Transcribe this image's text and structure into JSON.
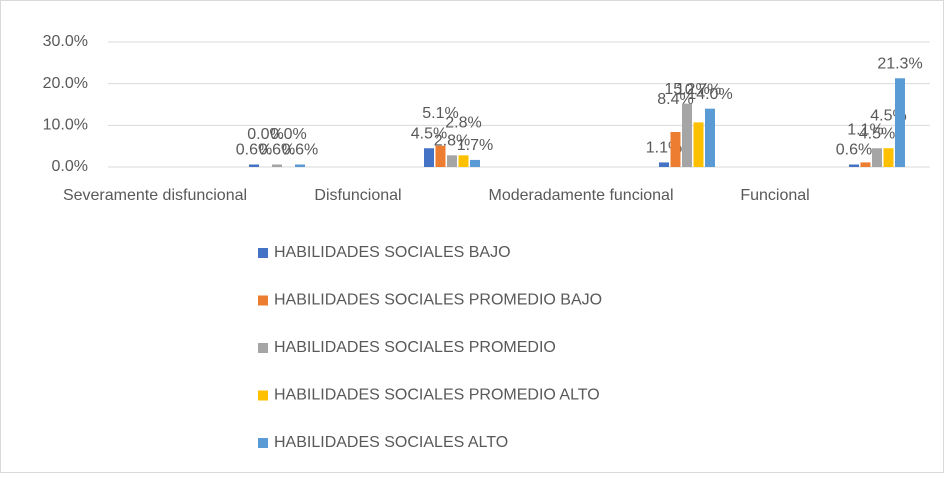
{
  "chart_data": {
    "type": "bar",
    "categories": [
      "Severamente disfuncional",
      "Disfuncional",
      "Moderadamente funcional",
      "Funcional"
    ],
    "series": [
      {
        "name": "HABILIDADES SOCIALES BAJO",
        "color": "#4472c4",
        "values": [
          0.6,
          4.5,
          1.1,
          0.6
        ],
        "value_labels": [
          "0.6%",
          "4.5%",
          "1.1%",
          "0.6%"
        ]
      },
      {
        "name": "HABILIDADES SOCIALES PROMEDIO BAJO",
        "color": "#ed7d31",
        "values": [
          0.0,
          5.1,
          8.4,
          1.1
        ],
        "value_labels": [
          "0.0%",
          "5.1%",
          "8.4%",
          "1.1%"
        ]
      },
      {
        "name": "HABILIDADES SOCIALES PROMEDIO",
        "color": "#a5a5a5",
        "values": [
          0.6,
          2.8,
          15.2,
          4.5
        ],
        "value_labels": [
          "0.6%",
          "2.8%",
          "15.2%",
          "4.5%"
        ]
      },
      {
        "name": "HABILIDADES SOCIALES PROMEDIO ALTO",
        "color": "#ffc000",
        "values": [
          0.0,
          2.8,
          10.7,
          4.5
        ],
        "value_labels": [
          "0.0%",
          "2.8%",
          "10.7%",
          "4.5%"
        ]
      },
      {
        "name": "HABILIDADES SOCIALES ALTO",
        "color": "#5b9bd5",
        "values": [
          0.6,
          1.7,
          14.0,
          21.3
        ],
        "value_labels": [
          "0.6%",
          "1.7%",
          "14.0%",
          "21.3%"
        ]
      }
    ],
    "ylim": [
      0,
      30
    ],
    "yticks": [
      {
        "value": 0,
        "label": "0.0%"
      },
      {
        "value": 10,
        "label": "10.0%"
      },
      {
        "value": 20,
        "label": "20.0%"
      },
      {
        "value": 30,
        "label": "30.0%"
      }
    ],
    "grid": true,
    "legend": "bottom"
  }
}
